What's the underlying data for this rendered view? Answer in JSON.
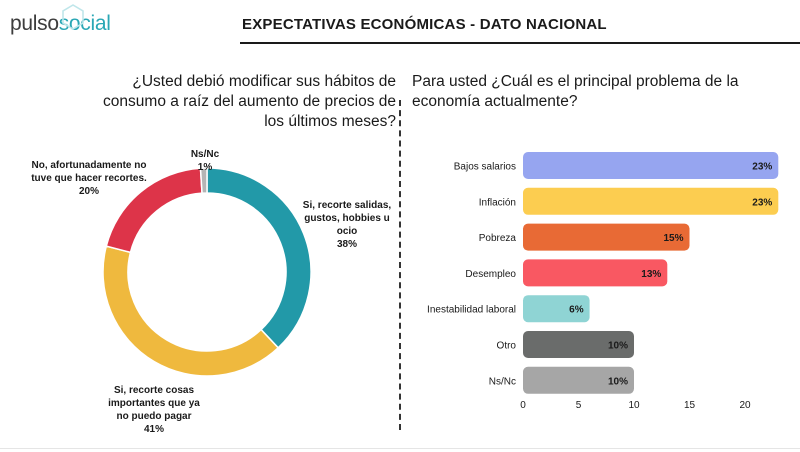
{
  "header": {
    "logo_part1": "pulso",
    "logo_part2": "social",
    "title": "EXPECTATIVAS ECONÓMICAS - DATO NACIONAL"
  },
  "colors": {
    "teal": "#2aa7b5",
    "donut_teal": "#2299a8",
    "donut_yellow": "#efb93e",
    "donut_red": "#dd3449",
    "donut_gray": "#b5b5b5"
  },
  "chart_data": [
    {
      "type": "pie",
      "donut": true,
      "title": "¿Usted debió modificar sus hábitos de consumo a raíz del aumento de precios de los últimos meses?",
      "slices": [
        {
          "label": "Si, recorte salidas, gustos, hobbies u ocio",
          "value": 38,
          "value_label": "38%",
          "color": "#2299a8"
        },
        {
          "label": "Si, recorte cosas importantes que ya no puedo pagar",
          "value": 41,
          "value_label": "41%",
          "color": "#efb93e"
        },
        {
          "label": "No, afortunadamente no tuve que hacer recortes.",
          "value": 20,
          "value_label": "20%",
          "color": "#dd3449"
        },
        {
          "label": "Ns/Nc",
          "value": 1,
          "value_label": "1%",
          "color": "#b5b5b5"
        }
      ]
    },
    {
      "type": "bar",
      "orientation": "horizontal",
      "title": "Para usted ¿Cuál es el principal problema de la economía actualmente?",
      "categories": [
        "Bajos salarios",
        "Inflación",
        "Pobreza",
        "Desempleo",
        "Inestabilidad laboral",
        "Otro",
        "Ns/Nc"
      ],
      "values": [
        23,
        23,
        15,
        13,
        6,
        10,
        10
      ],
      "value_labels": [
        "23%",
        "23%",
        "15%",
        "13%",
        "6%",
        "10%",
        "10%"
      ],
      "colors": [
        "#96a5f0",
        "#fccd50",
        "#e86a35",
        "#f95862",
        "#8fd4d4",
        "#6a6c6b",
        "#a6a6a6"
      ],
      "xlim": [
        0,
        25
      ],
      "xticks": [
        0,
        5,
        10,
        15,
        20
      ],
      "xtick_labels": [
        "0",
        "5",
        "10",
        "15",
        "20"
      ]
    }
  ]
}
